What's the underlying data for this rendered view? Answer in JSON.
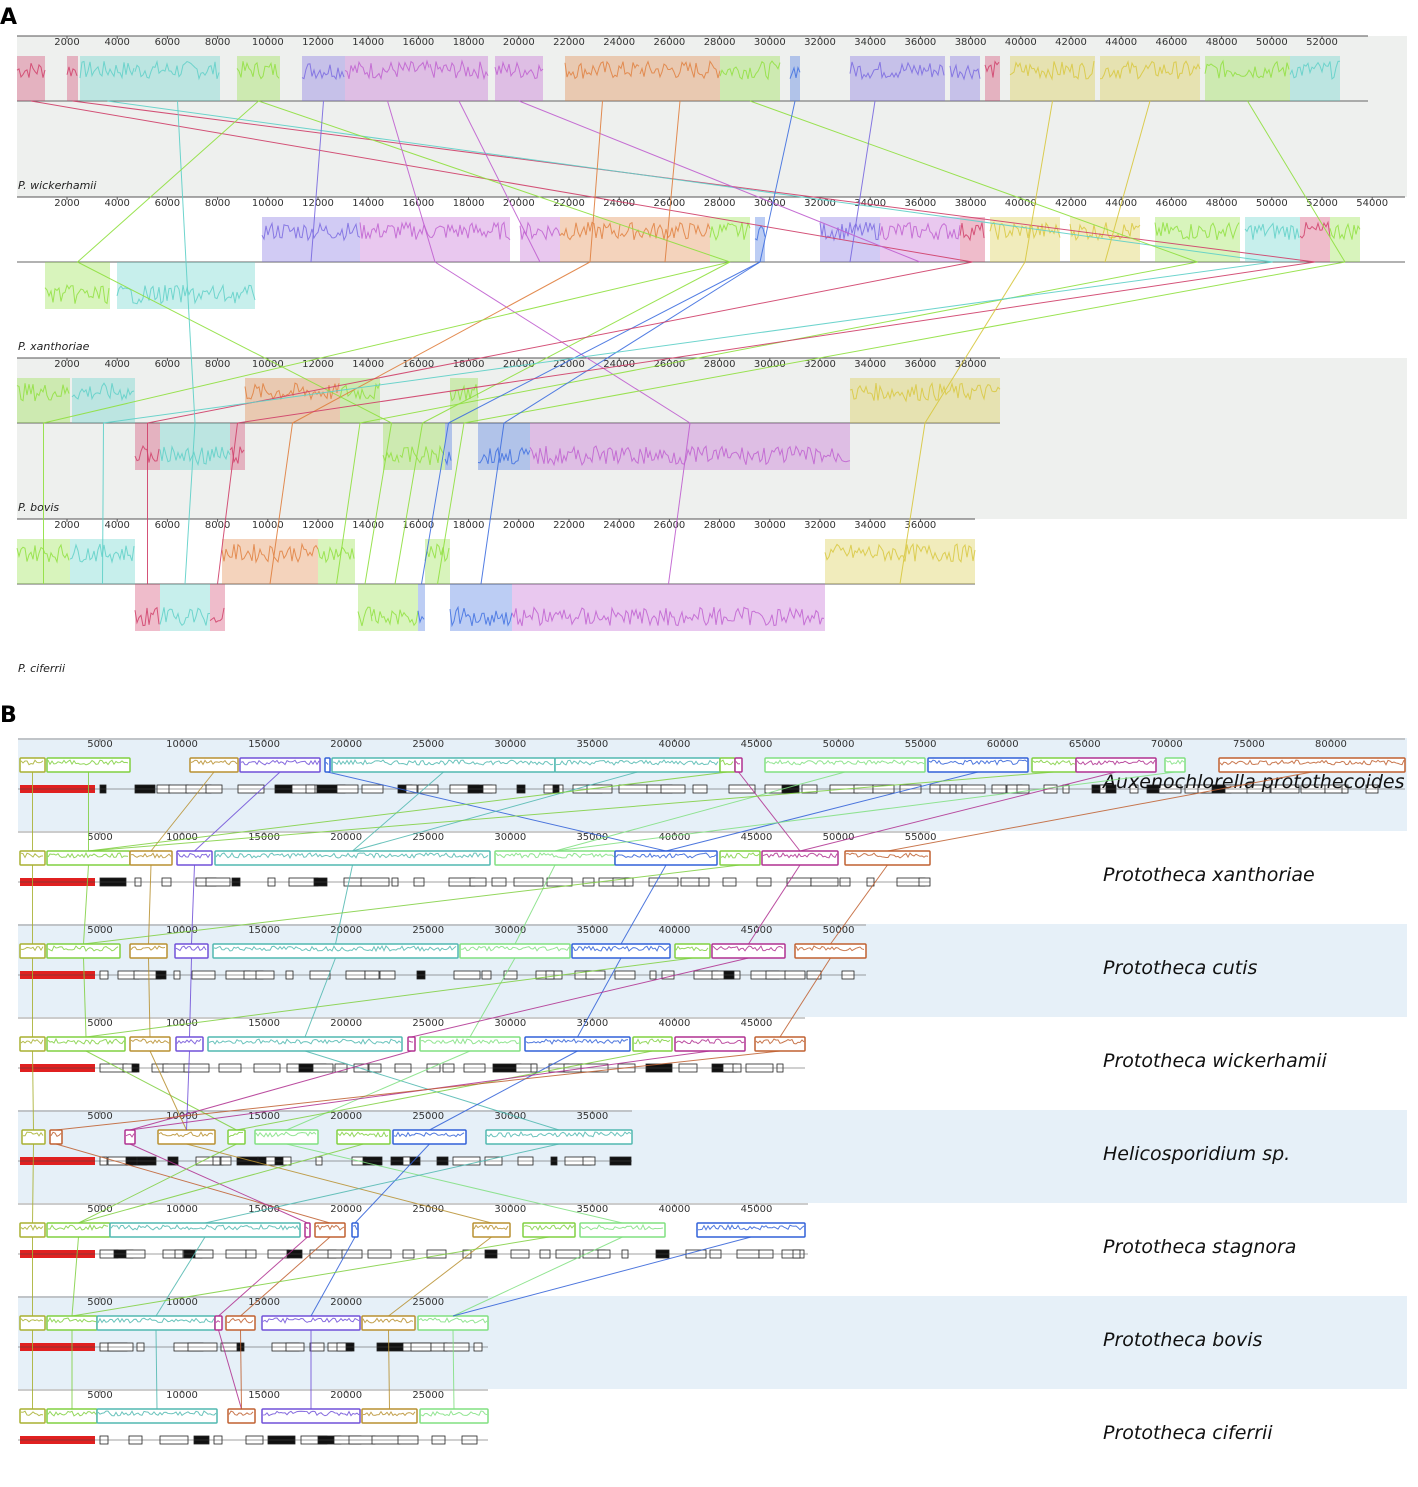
{
  "panels": [
    {
      "label": "A",
      "tracks": [
        {
          "name": "P. wickerhamii",
          "ticks": [
            2000,
            4000,
            6000,
            8000,
            10000,
            12000,
            14000,
            16000,
            18000,
            20000,
            22000,
            24000,
            26000,
            28000,
            30000,
            32000,
            34000,
            36000,
            38000,
            40000,
            42000,
            44000,
            46000,
            48000,
            50000,
            52000
          ]
        },
        {
          "name": "P. xanthoriae",
          "ticks": [
            2000,
            4000,
            6000,
            8000,
            10000,
            12000,
            14000,
            16000,
            18000,
            20000,
            22000,
            24000,
            26000,
            28000,
            30000,
            32000,
            34000,
            36000,
            38000,
            40000,
            42000,
            44000,
            46000,
            48000,
            50000,
            52000,
            54000
          ]
        },
        {
          "name": "P. bovis",
          "ticks": [
            2000,
            4000,
            6000,
            8000,
            10000,
            12000,
            14000,
            16000,
            18000,
            20000,
            22000,
            24000,
            26000,
            28000,
            30000,
            32000,
            34000,
            36000,
            38000
          ]
        },
        {
          "name": "P. ciferrii",
          "ticks": [
            2000,
            4000,
            6000,
            8000,
            10000,
            12000,
            14000,
            16000,
            18000,
            20000,
            22000,
            24000,
            26000,
            28000,
            30000,
            32000,
            34000,
            36000
          ]
        }
      ]
    },
    {
      "label": "B",
      "tracks": [
        {
          "name": "Auxenochlorella protothecoides",
          "ticks": [
            5000,
            10000,
            15000,
            20000,
            25000,
            30000,
            35000,
            40000,
            45000,
            50000,
            55000,
            60000,
            65000,
            70000,
            75000,
            80000
          ]
        },
        {
          "name": "Prototheca xanthoriae",
          "ticks": [
            5000,
            10000,
            15000,
            20000,
            25000,
            30000,
            35000,
            40000,
            45000,
            50000,
            55000
          ]
        },
        {
          "name": "Prototheca cutis",
          "ticks": [
            5000,
            10000,
            15000,
            20000,
            25000,
            30000,
            35000,
            40000,
            45000,
            50000
          ]
        },
        {
          "name": "Prototheca wickerhamii",
          "ticks": [
            5000,
            10000,
            15000,
            20000,
            25000,
            30000,
            35000,
            40000,
            45000
          ]
        },
        {
          "name": "Helicosporidium sp.",
          "ticks": [
            5000,
            10000,
            15000,
            20000,
            25000,
            30000,
            35000
          ]
        },
        {
          "name": "Prototheca stagnora",
          "ticks": [
            5000,
            10000,
            15000,
            20000,
            25000,
            30000,
            35000,
            40000,
            45000
          ]
        },
        {
          "name": "Prototheca bovis",
          "ticks": [
            5000,
            10000,
            15000,
            20000,
            25000
          ]
        },
        {
          "name": "Prototheca ciferrii",
          "ticks": [
            5000,
            10000,
            15000,
            20000,
            25000
          ]
        }
      ]
    }
  ]
}
